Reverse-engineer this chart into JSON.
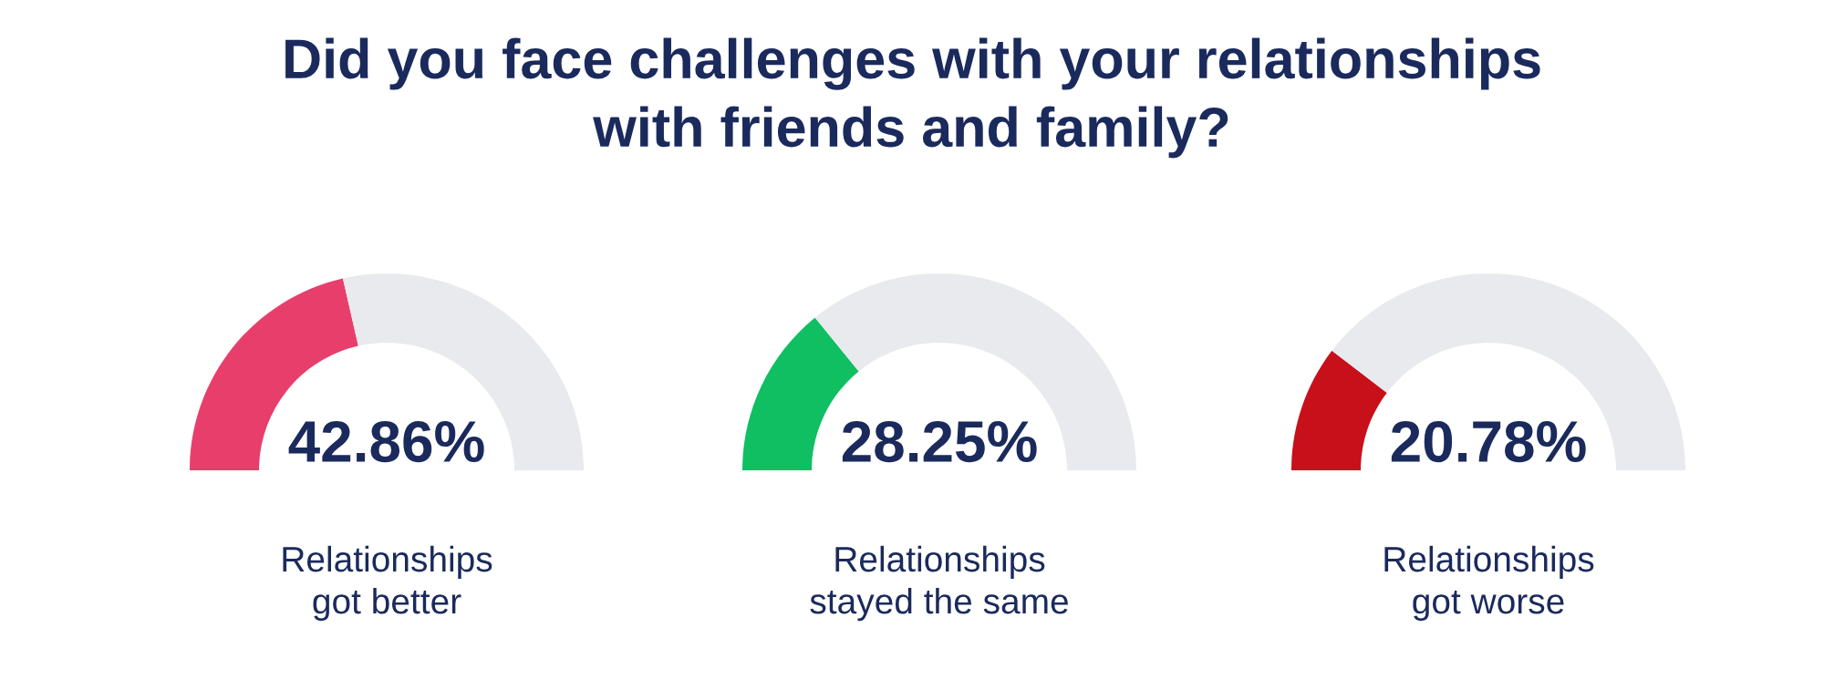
{
  "chart_data": [
    {
      "type": "donut",
      "title": "Did you face challenges with your relationships\nwith friends and family?",
      "xlabel": "Relationships\ngot better",
      "annotations": [
        "42.86%"
      ],
      "categories": [
        null,
        null
      ],
      "values": [
        42.86,
        57.14
      ],
      "colors": [
        "#e83e6c",
        "#e8eaed"
      ]
    },
    {
      "type": "donut",
      "xlabel": "Relationships\nstayed the same",
      "annotations": [
        "28.25%"
      ],
      "categories": [
        null,
        null
      ],
      "values": [
        28.25,
        71.75
      ],
      "colors": [
        "#0fbf62",
        "#e8eaed"
      ]
    },
    {
      "type": "donut",
      "xlabel": "Relationships\ngot worse",
      "annotations": [
        "20.78%"
      ],
      "categories": [
        null,
        null
      ],
      "values": [
        20.78,
        79.22
      ],
      "colors": [
        "#c8101a",
        "#e8eaed"
      ]
    }
  ]
}
